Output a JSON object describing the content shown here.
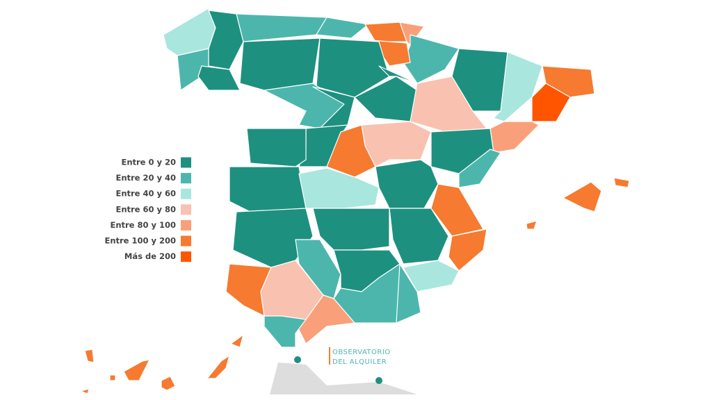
{
  "legend": {
    "items": [
      {
        "label": "Entre 0 y 20",
        "color": "#1e9080"
      },
      {
        "label": "Entre 20 y 40",
        "color": "#4db6ac"
      },
      {
        "label": "Entre 40 y 60",
        "color": "#a8e6de"
      },
      {
        "label": "Entre 60 y 80",
        "color": "#f9c1b0"
      },
      {
        "label": "Entre 80 y 100",
        "color": "#f9a07a"
      },
      {
        "label": "Entre 100 y 200",
        "color": "#f67a30"
      },
      {
        "label": "Más de 200",
        "color": "#ff5500"
      }
    ]
  },
  "logo": {
    "line1": "OBSERVATORIO",
    "line2": "DEL ALQUILER"
  }
}
